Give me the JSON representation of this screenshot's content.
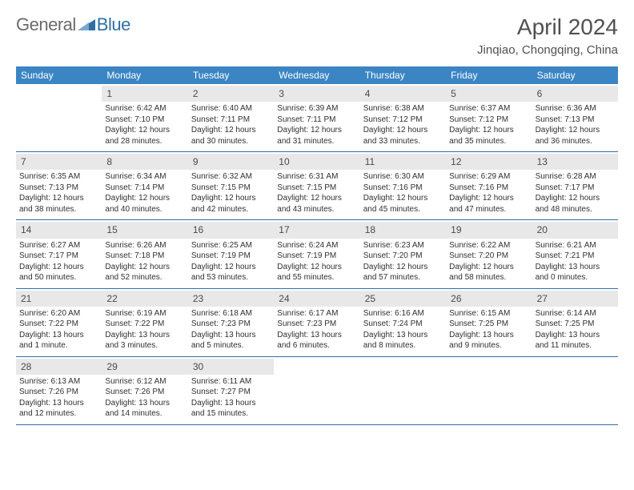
{
  "logo": {
    "text1": "General",
    "text2": "Blue"
  },
  "title": "April 2024",
  "location": "Jinqiao, Chongqing, China",
  "colors": {
    "header_bg": "#3b85c4",
    "header_text": "#ffffff",
    "daynum_bg": "#e8e8e8",
    "week_border": "#2f6fa6",
    "logo_gray": "#6a6a6a",
    "logo_blue": "#2f6fa6"
  },
  "day_names": [
    "Sunday",
    "Monday",
    "Tuesday",
    "Wednesday",
    "Thursday",
    "Friday",
    "Saturday"
  ],
  "weeks": [
    [
      {
        "num": "",
        "lines": []
      },
      {
        "num": "1",
        "lines": [
          "Sunrise: 6:42 AM",
          "Sunset: 7:10 PM",
          "Daylight: 12 hours",
          "and 28 minutes."
        ]
      },
      {
        "num": "2",
        "lines": [
          "Sunrise: 6:40 AM",
          "Sunset: 7:11 PM",
          "Daylight: 12 hours",
          "and 30 minutes."
        ]
      },
      {
        "num": "3",
        "lines": [
          "Sunrise: 6:39 AM",
          "Sunset: 7:11 PM",
          "Daylight: 12 hours",
          "and 31 minutes."
        ]
      },
      {
        "num": "4",
        "lines": [
          "Sunrise: 6:38 AM",
          "Sunset: 7:12 PM",
          "Daylight: 12 hours",
          "and 33 minutes."
        ]
      },
      {
        "num": "5",
        "lines": [
          "Sunrise: 6:37 AM",
          "Sunset: 7:12 PM",
          "Daylight: 12 hours",
          "and 35 minutes."
        ]
      },
      {
        "num": "6",
        "lines": [
          "Sunrise: 6:36 AM",
          "Sunset: 7:13 PM",
          "Daylight: 12 hours",
          "and 36 minutes."
        ]
      }
    ],
    [
      {
        "num": "7",
        "lines": [
          "Sunrise: 6:35 AM",
          "Sunset: 7:13 PM",
          "Daylight: 12 hours",
          "and 38 minutes."
        ]
      },
      {
        "num": "8",
        "lines": [
          "Sunrise: 6:34 AM",
          "Sunset: 7:14 PM",
          "Daylight: 12 hours",
          "and 40 minutes."
        ]
      },
      {
        "num": "9",
        "lines": [
          "Sunrise: 6:32 AM",
          "Sunset: 7:15 PM",
          "Daylight: 12 hours",
          "and 42 minutes."
        ]
      },
      {
        "num": "10",
        "lines": [
          "Sunrise: 6:31 AM",
          "Sunset: 7:15 PM",
          "Daylight: 12 hours",
          "and 43 minutes."
        ]
      },
      {
        "num": "11",
        "lines": [
          "Sunrise: 6:30 AM",
          "Sunset: 7:16 PM",
          "Daylight: 12 hours",
          "and 45 minutes."
        ]
      },
      {
        "num": "12",
        "lines": [
          "Sunrise: 6:29 AM",
          "Sunset: 7:16 PM",
          "Daylight: 12 hours",
          "and 47 minutes."
        ]
      },
      {
        "num": "13",
        "lines": [
          "Sunrise: 6:28 AM",
          "Sunset: 7:17 PM",
          "Daylight: 12 hours",
          "and 48 minutes."
        ]
      }
    ],
    [
      {
        "num": "14",
        "lines": [
          "Sunrise: 6:27 AM",
          "Sunset: 7:17 PM",
          "Daylight: 12 hours",
          "and 50 minutes."
        ]
      },
      {
        "num": "15",
        "lines": [
          "Sunrise: 6:26 AM",
          "Sunset: 7:18 PM",
          "Daylight: 12 hours",
          "and 52 minutes."
        ]
      },
      {
        "num": "16",
        "lines": [
          "Sunrise: 6:25 AM",
          "Sunset: 7:19 PM",
          "Daylight: 12 hours",
          "and 53 minutes."
        ]
      },
      {
        "num": "17",
        "lines": [
          "Sunrise: 6:24 AM",
          "Sunset: 7:19 PM",
          "Daylight: 12 hours",
          "and 55 minutes."
        ]
      },
      {
        "num": "18",
        "lines": [
          "Sunrise: 6:23 AM",
          "Sunset: 7:20 PM",
          "Daylight: 12 hours",
          "and 57 minutes."
        ]
      },
      {
        "num": "19",
        "lines": [
          "Sunrise: 6:22 AM",
          "Sunset: 7:20 PM",
          "Daylight: 12 hours",
          "and 58 minutes."
        ]
      },
      {
        "num": "20",
        "lines": [
          "Sunrise: 6:21 AM",
          "Sunset: 7:21 PM",
          "Daylight: 13 hours",
          "and 0 minutes."
        ]
      }
    ],
    [
      {
        "num": "21",
        "lines": [
          "Sunrise: 6:20 AM",
          "Sunset: 7:22 PM",
          "Daylight: 13 hours",
          "and 1 minute."
        ]
      },
      {
        "num": "22",
        "lines": [
          "Sunrise: 6:19 AM",
          "Sunset: 7:22 PM",
          "Daylight: 13 hours",
          "and 3 minutes."
        ]
      },
      {
        "num": "23",
        "lines": [
          "Sunrise: 6:18 AM",
          "Sunset: 7:23 PM",
          "Daylight: 13 hours",
          "and 5 minutes."
        ]
      },
      {
        "num": "24",
        "lines": [
          "Sunrise: 6:17 AM",
          "Sunset: 7:23 PM",
          "Daylight: 13 hours",
          "and 6 minutes."
        ]
      },
      {
        "num": "25",
        "lines": [
          "Sunrise: 6:16 AM",
          "Sunset: 7:24 PM",
          "Daylight: 13 hours",
          "and 8 minutes."
        ]
      },
      {
        "num": "26",
        "lines": [
          "Sunrise: 6:15 AM",
          "Sunset: 7:25 PM",
          "Daylight: 13 hours",
          "and 9 minutes."
        ]
      },
      {
        "num": "27",
        "lines": [
          "Sunrise: 6:14 AM",
          "Sunset: 7:25 PM",
          "Daylight: 13 hours",
          "and 11 minutes."
        ]
      }
    ],
    [
      {
        "num": "28",
        "lines": [
          "Sunrise: 6:13 AM",
          "Sunset: 7:26 PM",
          "Daylight: 13 hours",
          "and 12 minutes."
        ]
      },
      {
        "num": "29",
        "lines": [
          "Sunrise: 6:12 AM",
          "Sunset: 7:26 PM",
          "Daylight: 13 hours",
          "and 14 minutes."
        ]
      },
      {
        "num": "30",
        "lines": [
          "Sunrise: 6:11 AM",
          "Sunset: 7:27 PM",
          "Daylight: 13 hours",
          "and 15 minutes."
        ]
      },
      {
        "num": "",
        "lines": []
      },
      {
        "num": "",
        "lines": []
      },
      {
        "num": "",
        "lines": []
      },
      {
        "num": "",
        "lines": []
      }
    ]
  ]
}
